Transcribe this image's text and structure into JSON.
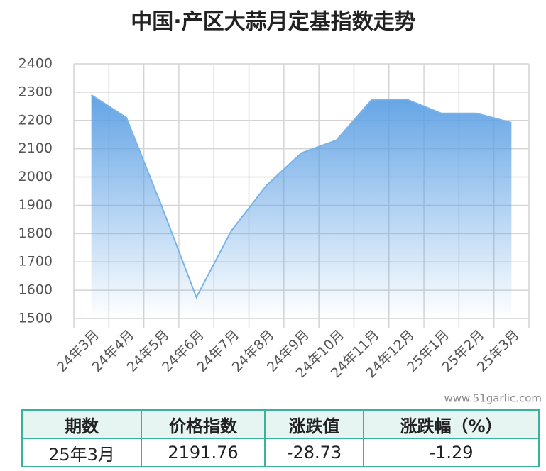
{
  "chart_data": {
    "type": "area",
    "title": "中国·产区大蒜月定基指数走势",
    "categories": [
      "24年3月",
      "24年4月",
      "24年5月",
      "24年6月",
      "24年7月",
      "24年8月",
      "24年9月",
      "24年10月",
      "24年11月",
      "24年12月",
      "25年1月",
      "25年2月",
      "25年3月"
    ],
    "values": [
      2290,
      2210,
      1900,
      1575,
      1810,
      1970,
      2085,
      2130,
      2272,
      2275,
      2225,
      2225,
      2192
    ],
    "color": "#7ab3e6",
    "ylim": [
      1500,
      2400
    ],
    "yticks": [
      1500,
      1600,
      1700,
      1800,
      1900,
      2000,
      2100,
      2200,
      2300,
      2400
    ],
    "grid": true
  },
  "watermark": "www.51garlic.com",
  "table": {
    "headers": [
      "期数",
      "价格指数",
      "涨跌值",
      "涨跌幅（%）"
    ],
    "rows": [
      [
        "25年3月",
        "2191.76",
        "-28.73",
        "-1.29"
      ]
    ]
  }
}
